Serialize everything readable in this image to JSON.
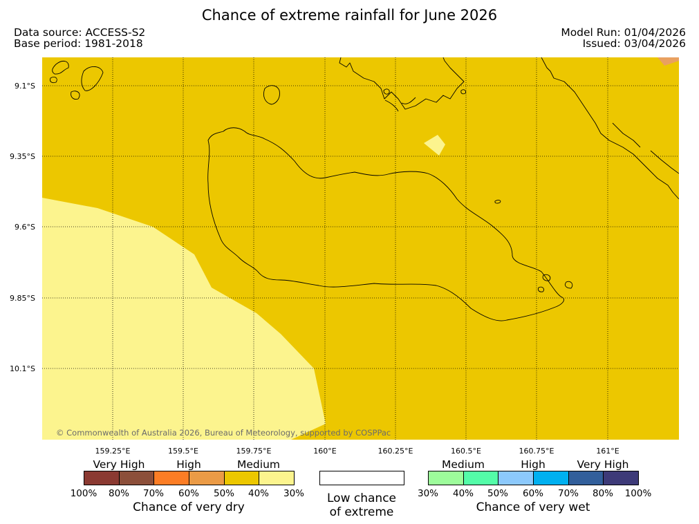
{
  "header": {
    "title": "Chance of extreme rainfall for June 2026",
    "data_source": "Data source: ACCESS-S2",
    "base_period": "Base period: 1981-2018",
    "model_run": "Model Run: 01/04/2026",
    "issued": "Issued: 03/04/2026"
  },
  "map": {
    "latitude_labels": [
      "9.1°S",
      "9.35°S",
      "9.6°S",
      "9.85°S",
      "10.1°S"
    ],
    "longitude_labels": [
      "159.25°E",
      "159.5°E",
      "159.75°E",
      "160°E",
      "160.25°E",
      "160.5°E",
      "160.75°E",
      "161°E"
    ],
    "copyright": "© Commonwealth of Australia 2026, Bureau of Meteorology, supported by COSPPac",
    "colors": {
      "medium_dry": "#ecc700",
      "low_dry": "#fcf48e",
      "high_dry_edge": "#e9a060",
      "coastline": "#000000"
    }
  },
  "legend": {
    "dry": {
      "categories": [
        "Very High",
        "High",
        "Medium"
      ],
      "colors": [
        "#8b3a32",
        "#8c4f3a",
        "#fc7d25",
        "#eb9b46",
        "#ecc700",
        "#fcf48e"
      ],
      "ticks": [
        "100%",
        "80%",
        "70%",
        "60%",
        "50%",
        "40%",
        "30%"
      ],
      "title": "Chance of very dry"
    },
    "low": {
      "color": "#ffffff",
      "line1": "Low chance",
      "line2": "of extreme"
    },
    "wet": {
      "categories": [
        "Medium",
        "High",
        "Very High"
      ],
      "colors": [
        "#9dfc9b",
        "#54fca8",
        "#8cc9fc",
        "#00b0f0",
        "#325f9b",
        "#3d3a78"
      ],
      "ticks": [
        "30%",
        "40%",
        "50%",
        "60%",
        "70%",
        "80%",
        "100%"
      ],
      "title": "Chance of very wet"
    }
  }
}
